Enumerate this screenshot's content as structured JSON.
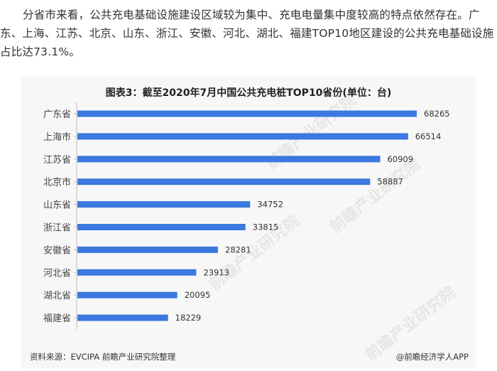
{
  "intro_text": "分省市来看，公共充电基础设施建设区域较为集中、充电电量集中度较高的特点依然存在。广东、上海、江苏、北京、山东、浙江、安徽、河北、湖北、福建TOP10地区建设的公共充电基础设施占比达73.1%。",
  "figure": {
    "title": "图表3：截至2020年7月中国公共充电桩TOP10省份(单位：台)",
    "source": "资料来源：EVCIPA 前瞻产业研究院整理",
    "credit": "@前瞻经济学人APP",
    "watermark": "前瞻产业研究院",
    "bar_color": "#3b78e0"
  },
  "chart_data": {
    "type": "bar",
    "orientation": "horizontal",
    "categories": [
      "广东省",
      "上海市",
      "江苏省",
      "北京市",
      "山东省",
      "浙江省",
      "安徽省",
      "河北省",
      "湖北省",
      "福建省"
    ],
    "values": [
      68265,
      66514,
      60909,
      58887,
      34752,
      33815,
      28281,
      23913,
      20095,
      18229
    ],
    "title": "图表3：截至2020年7月中国公共充电桩TOP10省份(单位：台)",
    "xlabel": "",
    "ylabel": "",
    "data_labels": true,
    "grid": false
  }
}
